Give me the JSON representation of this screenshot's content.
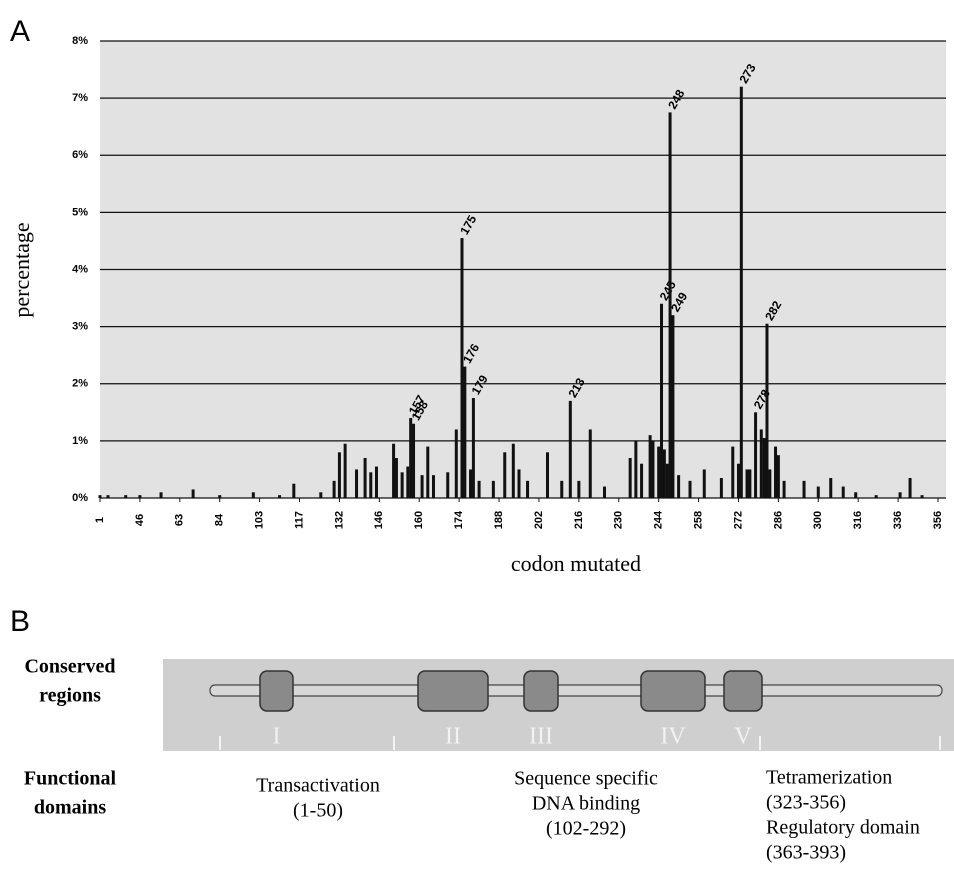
{
  "chart_data": {
    "type": "bar",
    "panel": "A",
    "x_label": "codon mutated",
    "y_label": "percentage",
    "color": "#111111",
    "grid": true,
    "ylim": [
      0,
      8
    ],
    "yticks": [
      {
        "value": 0,
        "label": "0%"
      },
      {
        "value": 1,
        "label": "1%"
      },
      {
        "value": 2,
        "label": "2%"
      },
      {
        "value": 3,
        "label": "3%"
      },
      {
        "value": 4,
        "label": "4%"
      },
      {
        "value": 5,
        "label": "5%"
      },
      {
        "value": 6,
        "label": "6%"
      },
      {
        "value": 7,
        "label": "7%"
      },
      {
        "value": 8,
        "label": "8%"
      }
    ],
    "xlim": [
      1,
      360
    ],
    "xticks": [
      1,
      46,
      63,
      84,
      103,
      117,
      132,
      146,
      160,
      174,
      188,
      202,
      216,
      230,
      244,
      258,
      272,
      286,
      300,
      316,
      336,
      356
    ],
    "peaks": {
      "x": [
        157,
        158,
        175,
        176,
        179,
        213,
        245,
        248,
        249,
        273,
        278,
        282
      ],
      "values": [
        1.4,
        1.3,
        4.55,
        2.3,
        1.75,
        1.7,
        3.4,
        6.75,
        3.2,
        7.2,
        1.5,
        3.05
      ]
    },
    "background": {
      "x": [
        1,
        10,
        30,
        46,
        55,
        70,
        84,
        100,
        110,
        115,
        125,
        130,
        132,
        134,
        138,
        141,
        143,
        145,
        151,
        152,
        154,
        156,
        161,
        163,
        165,
        170,
        173,
        178,
        181,
        186,
        190,
        193,
        195,
        198,
        205,
        210,
        216,
        220,
        225,
        234,
        236,
        238,
        241,
        242,
        244,
        246,
        247,
        251,
        255,
        260,
        266,
        270,
        272,
        275,
        276,
        280,
        281,
        283,
        285,
        286,
        288,
        295,
        300,
        305,
        310,
        315,
        325,
        337,
        342,
        348
      ],
      "values": [
        0.05,
        0.05,
        0.05,
        0.05,
        0.1,
        0.15,
        0.05,
        0.1,
        0.05,
        0.25,
        0.1,
        0.3,
        0.8,
        0.95,
        0.5,
        0.7,
        0.45,
        0.55,
        0.95,
        0.7,
        0.45,
        0.55,
        0.4,
        0.9,
        0.4,
        0.45,
        1.2,
        0.5,
        0.3,
        0.3,
        0.8,
        0.95,
        0.5,
        0.3,
        0.8,
        0.3,
        0.3,
        1.2,
        0.2,
        0.7,
        1.0,
        0.6,
        1.1,
        1.0,
        0.9,
        0.85,
        0.6,
        0.4,
        0.3,
        0.5,
        0.35,
        0.9,
        0.6,
        0.5,
        0.5,
        1.2,
        1.05,
        0.5,
        0.9,
        0.75,
        0.3,
        0.3,
        0.2,
        0.35,
        0.2,
        0.1,
        0.05,
        0.1,
        0.35,
        0.05
      ]
    }
  },
  "diagram": {
    "panel": "B",
    "conserved_label": [
      "Conserved",
      "regions"
    ],
    "functional_label": [
      "Functional",
      "domains"
    ],
    "regions": [
      "I",
      "II",
      "III",
      "IV",
      "V"
    ],
    "domains": [
      [
        "Transactivation",
        "(1-50)"
      ],
      [
        "Sequence specific",
        "DNA binding",
        "(102-292)"
      ],
      [
        "Tetramerization",
        "(323-356)",
        "Regulatory domain",
        "(363-393)"
      ]
    ]
  }
}
